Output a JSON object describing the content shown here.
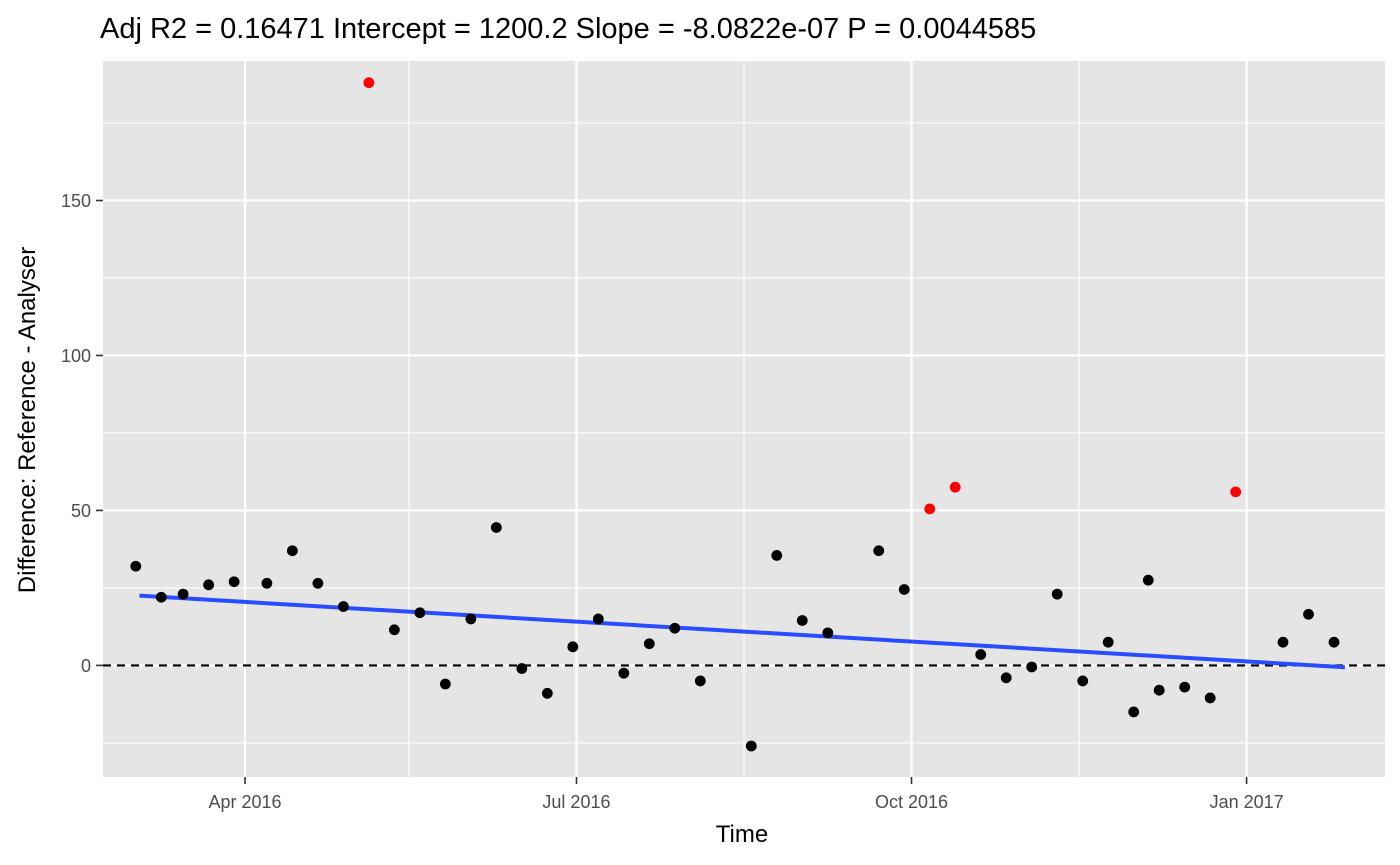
{
  "chart_data": {
    "type": "scatter",
    "title": "Adj R2 =  0.16471 Intercept = 1200.2 Slope = -8.0822e-07 P = 0.0044585",
    "xlabel": "Time",
    "ylabel": "Difference: Reference - Analyser",
    "xlim": [
      "2016-02-22",
      "2017-02-08"
    ],
    "ylim": [
      -36,
      195
    ],
    "x_ticks": [
      {
        "value": "2016-04-01",
        "label": "Apr 2016"
      },
      {
        "value": "2016-07-01",
        "label": "Jul 2016"
      },
      {
        "value": "2016-10-01",
        "label": "Oct 2016"
      },
      {
        "value": "2017-01-01",
        "label": "Jan 2017"
      }
    ],
    "x_minor_ticks": [
      "2016-02-15",
      "2016-05-16",
      "2016-08-16",
      "2016-11-16",
      "2017-02-15"
    ],
    "y_ticks": [
      0,
      50,
      100,
      150
    ],
    "grid": true,
    "reference_line": {
      "y": 0,
      "style": "dashed",
      "color": "#000000"
    },
    "fit_line": {
      "color": "#2a4cff",
      "points": [
        {
          "x": "2016-03-03",
          "y": 22.5
        },
        {
          "x": "2017-01-28",
          "y": -0.6
        }
      ]
    },
    "colors": {
      "normal": "#000000",
      "outlier": "#ff0000",
      "panel": "#e5e5e5",
      "grid": "#ffffff"
    },
    "points": [
      {
        "x": "2016-03-02",
        "y": 32,
        "outlier": false
      },
      {
        "x": "2016-03-09",
        "y": 22,
        "outlier": false
      },
      {
        "x": "2016-03-15",
        "y": 23,
        "outlier": false
      },
      {
        "x": "2016-03-22",
        "y": 26,
        "outlier": false
      },
      {
        "x": "2016-03-29",
        "y": 27,
        "outlier": false
      },
      {
        "x": "2016-04-07",
        "y": 26.5,
        "outlier": false
      },
      {
        "x": "2016-04-14",
        "y": 37,
        "outlier": false
      },
      {
        "x": "2016-04-21",
        "y": 26.5,
        "outlier": false
      },
      {
        "x": "2016-04-28",
        "y": 19,
        "outlier": false
      },
      {
        "x": "2016-05-05",
        "y": 188,
        "outlier": true
      },
      {
        "x": "2016-05-12",
        "y": 11.5,
        "outlier": false
      },
      {
        "x": "2016-05-19",
        "y": 17,
        "outlier": false
      },
      {
        "x": "2016-05-26",
        "y": -6,
        "outlier": false
      },
      {
        "x": "2016-06-02",
        "y": 15,
        "outlier": false
      },
      {
        "x": "2016-06-09",
        "y": 44.5,
        "outlier": false
      },
      {
        "x": "2016-06-16",
        "y": -1,
        "outlier": false
      },
      {
        "x": "2016-06-23",
        "y": -9,
        "outlier": false
      },
      {
        "x": "2016-06-30",
        "y": 6,
        "outlier": false
      },
      {
        "x": "2016-07-07",
        "y": 15,
        "outlier": false
      },
      {
        "x": "2016-07-14",
        "y": -2.5,
        "outlier": false
      },
      {
        "x": "2016-07-21",
        "y": 7,
        "outlier": false
      },
      {
        "x": "2016-07-28",
        "y": 12,
        "outlier": false
      },
      {
        "x": "2016-08-04",
        "y": -5,
        "outlier": false
      },
      {
        "x": "2016-08-18",
        "y": -26,
        "outlier": false
      },
      {
        "x": "2016-08-25",
        "y": 35.5,
        "outlier": false
      },
      {
        "x": "2016-09-01",
        "y": 14.5,
        "outlier": false
      },
      {
        "x": "2016-09-08",
        "y": 10.5,
        "outlier": false
      },
      {
        "x": "2016-09-22",
        "y": 37,
        "outlier": false
      },
      {
        "x": "2016-09-29",
        "y": 24.5,
        "outlier": false
      },
      {
        "x": "2016-10-06",
        "y": 50.5,
        "outlier": true
      },
      {
        "x": "2016-10-13",
        "y": 57.5,
        "outlier": true
      },
      {
        "x": "2016-10-20",
        "y": 3.5,
        "outlier": false
      },
      {
        "x": "2016-10-27",
        "y": -4,
        "outlier": false
      },
      {
        "x": "2016-11-03",
        "y": -0.5,
        "outlier": false
      },
      {
        "x": "2016-11-10",
        "y": 23,
        "outlier": false
      },
      {
        "x": "2016-11-17",
        "y": -5,
        "outlier": false
      },
      {
        "x": "2016-11-24",
        "y": 7.5,
        "outlier": false
      },
      {
        "x": "2016-12-01",
        "y": -15,
        "outlier": false
      },
      {
        "x": "2016-12-05",
        "y": 27.5,
        "outlier": false
      },
      {
        "x": "2016-12-08",
        "y": -8,
        "outlier": false
      },
      {
        "x": "2016-12-15",
        "y": -7,
        "outlier": false
      },
      {
        "x": "2016-12-22",
        "y": -10.5,
        "outlier": false
      },
      {
        "x": "2016-12-29",
        "y": 56,
        "outlier": true
      },
      {
        "x": "2017-01-11",
        "y": 7.5,
        "outlier": false
      },
      {
        "x": "2017-01-18",
        "y": 16.5,
        "outlier": false
      },
      {
        "x": "2017-01-25",
        "y": 7.5,
        "outlier": false
      }
    ]
  }
}
